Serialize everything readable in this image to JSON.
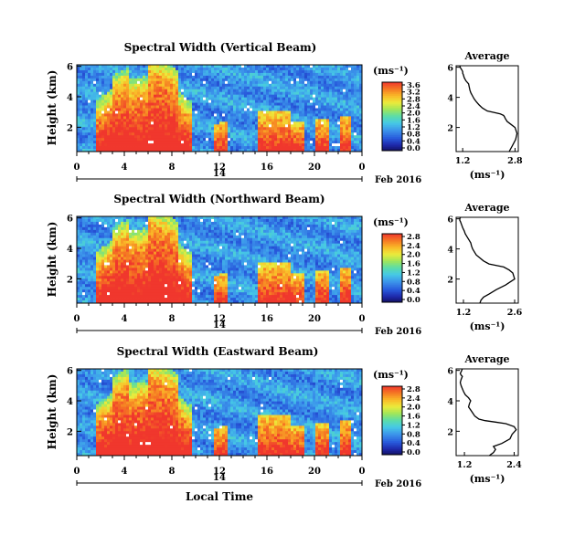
{
  "chart_data": [
    {
      "type": "heatmap",
      "title": "Spectral Width (Vertical Beam)",
      "ylabel": "Height (km)",
      "xlabel": "",
      "x_ticks": [
        "0",
        "4",
        "8",
        "12",
        "16",
        "20",
        "0"
      ],
      "xlim": [
        0,
        24
      ],
      "y_ticks": [
        "2",
        "4",
        "6"
      ],
      "ylim": [
        0.4,
        6.1
      ],
      "date_marker": "14",
      "date_label": "Feb 2016",
      "colorbar": {
        "unit": "(ms⁻¹)",
        "ticks": [
          "0.0",
          "0.4",
          "0.8",
          "1.2",
          "1.6",
          "2.0",
          "2.4",
          "2.8",
          "3.2",
          "3.6"
        ]
      },
      "profile": {
        "title": "Average",
        "xlabel": "(ms⁻¹)",
        "x_ticks": [
          "1.2",
          "2.8"
        ],
        "xlim": [
          1.0,
          2.9
        ],
        "y_ticks": [
          "2",
          "4",
          "6"
        ],
        "ylim": [
          0.4,
          6.1
        ],
        "x": [
          2.62,
          2.72,
          2.82,
          2.86,
          2.8,
          2.68,
          2.56,
          2.5,
          2.48,
          2.45,
          2.35,
          2.15,
          1.95,
          1.8,
          1.7,
          1.62,
          1.55,
          1.5,
          1.45,
          1.42,
          1.4,
          1.38,
          1.3,
          1.25,
          1.22,
          1.2,
          1.2,
          1.18,
          1.15,
          1.12,
          1.12,
          1.12
        ],
        "y": [
          0.4,
          0.8,
          1.2,
          1.6,
          2.0,
          2.2,
          2.4,
          2.6,
          2.7,
          2.8,
          2.9,
          3.0,
          3.1,
          3.3,
          3.5,
          3.7,
          3.9,
          4.1,
          4.3,
          4.5,
          4.7,
          4.9,
          5.1,
          5.3,
          5.5,
          5.6,
          5.7,
          5.8,
          5.9,
          6.0,
          6.05,
          6.1
        ]
      }
    },
    {
      "type": "heatmap",
      "title": "Spectral Width (Northward Beam)",
      "ylabel": "Height (km)",
      "xlabel": "",
      "x_ticks": [
        "0",
        "4",
        "8",
        "12",
        "16",
        "20",
        "0"
      ],
      "xlim": [
        0,
        24
      ],
      "y_ticks": [
        "2",
        "4",
        "6"
      ],
      "ylim": [
        0.4,
        6.1
      ],
      "date_marker": "14",
      "date_label": "Feb 2016",
      "colorbar": {
        "unit": "(ms⁻¹)",
        "ticks": [
          "0.0",
          "0.4",
          "0.8",
          "1.2",
          "1.6",
          "2.0",
          "2.4",
          "2.8"
        ]
      },
      "profile": {
        "title": "Average",
        "xlabel": "(ms⁻¹)",
        "x_ticks": [
          "1.2",
          "2.6"
        ],
        "xlim": [
          1.0,
          2.7
        ],
        "y_ticks": [
          "2",
          "4",
          "6"
        ],
        "ylim": [
          0.4,
          6.1
        ],
        "x": [
          1.65,
          1.68,
          1.75,
          1.9,
          2.1,
          2.35,
          2.6,
          2.55,
          2.45,
          2.3,
          2.1,
          1.9,
          1.75,
          1.65,
          1.55,
          1.5,
          1.45,
          1.42,
          1.4,
          1.35,
          1.3,
          1.25,
          1.22,
          1.18,
          1.15,
          1.12,
          1.1,
          1.1,
          1.12
        ],
        "y": [
          0.4,
          0.6,
          0.8,
          1.0,
          1.3,
          1.6,
          2.0,
          2.4,
          2.6,
          2.8,
          2.9,
          3.0,
          3.2,
          3.4,
          3.6,
          3.8,
          4.0,
          4.2,
          4.4,
          4.6,
          4.8,
          5.0,
          5.2,
          5.4,
          5.6,
          5.8,
          5.9,
          6.0,
          6.1
        ]
      }
    },
    {
      "type": "heatmap",
      "title": "Spectral Width (Eastward Beam)",
      "ylabel": "Height (km)",
      "xlabel": "Local Time",
      "x_ticks": [
        "0",
        "4",
        "8",
        "12",
        "16",
        "20",
        "0"
      ],
      "xlim": [
        0,
        24
      ],
      "y_ticks": [
        "2",
        "4",
        "6"
      ],
      "ylim": [
        0.4,
        6.1
      ],
      "date_marker": "14",
      "date_label": "Feb 2016",
      "colorbar": {
        "unit": "(ms⁻¹)",
        "ticks": [
          "0.0",
          "0.4",
          "0.8",
          "1.2",
          "1.6",
          "2.0",
          "2.4",
          "2.8"
        ]
      },
      "profile": {
        "title": "Average",
        "xlabel": "(ms⁻¹)",
        "x_ticks": [
          "1.2",
          "2.4"
        ],
        "xlim": [
          1.0,
          2.5
        ],
        "y_ticks": [
          "2",
          "4",
          "6"
        ],
        "ylim": [
          0.4,
          6.1
        ],
        "x": [
          1.8,
          1.9,
          1.95,
          1.9,
          2.1,
          2.3,
          2.35,
          2.45,
          2.4,
          2.2,
          1.95,
          1.7,
          1.55,
          1.45,
          1.4,
          1.35,
          1.3,
          1.32,
          1.35,
          1.3,
          1.22,
          1.18,
          1.15,
          1.12,
          1.1,
          1.12,
          1.15,
          1.12,
          1.1,
          1.12,
          1.15
        ],
        "y": [
          0.4,
          0.6,
          0.8,
          1.0,
          1.2,
          1.5,
          1.8,
          2.1,
          2.3,
          2.5,
          2.6,
          2.7,
          2.8,
          3.0,
          3.2,
          3.4,
          3.6,
          3.8,
          4.0,
          4.2,
          4.4,
          4.6,
          4.8,
          5.0,
          5.2,
          5.4,
          5.6,
          5.7,
          5.8,
          5.9,
          6.1
        ]
      }
    }
  ]
}
